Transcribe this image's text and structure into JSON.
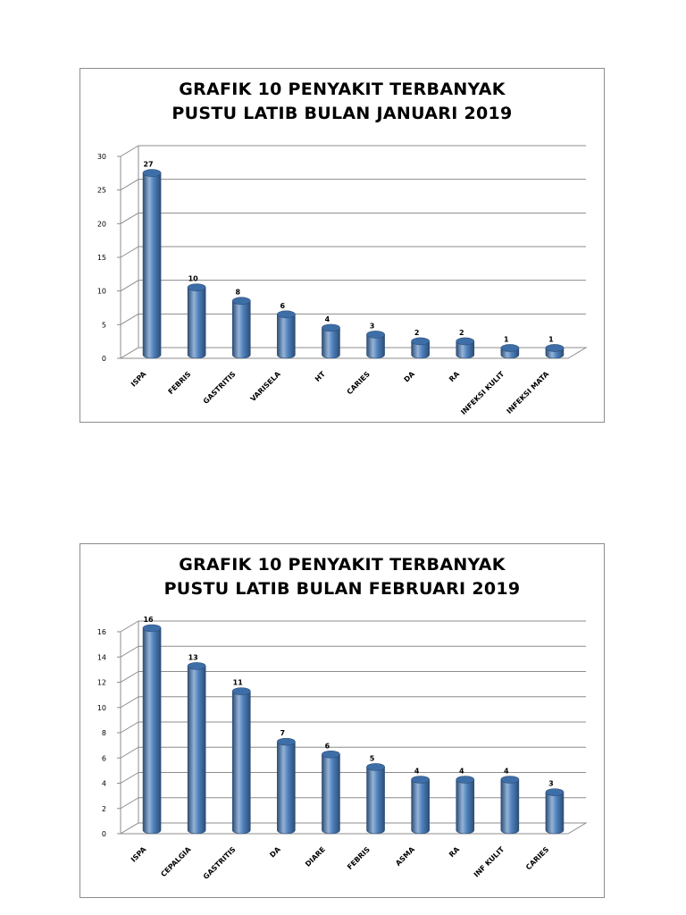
{
  "chart_data": [
    {
      "type": "bar",
      "title": [
        "GRAFIK 10 PENYAKIT TERBANYAK",
        "PUSTU LATIB BULAN JANUARI 2019"
      ],
      "categories": [
        "ISPA",
        "FEBRIS",
        "GASTRITIS",
        "VARISELA",
        "HT",
        "CARIES",
        "DA",
        "RA",
        "INFEKSI KULIT",
        "INFEKSI MATA"
      ],
      "values": [
        27,
        10,
        8,
        6,
        4,
        3,
        2,
        2,
        1,
        1
      ],
      "ylim": [
        0,
        30
      ],
      "yticks": [
        0,
        5,
        10,
        15,
        20,
        25,
        30
      ],
      "grid": true,
      "legend": "none",
      "colors": {
        "bar": "#4f81bd",
        "bar_light": "#95b3d7",
        "bar_dark": "#2c4d75"
      }
    },
    {
      "type": "bar",
      "title": [
        "GRAFIK 10 PENYAKIT TERBANYAK",
        "PUSTU LATIB BULAN FEBRUARI 2019"
      ],
      "categories": [
        "ISPA",
        "CEPALGIA",
        "GASTRITIS",
        "DA",
        "DIARE",
        "FEBRIS",
        "ASMA",
        "RA",
        "INF KULIT",
        "CARIES"
      ],
      "values": [
        16,
        13,
        11,
        7,
        6,
        5,
        4,
        4,
        4,
        3
      ],
      "ylim": [
        0,
        16
      ],
      "yticks": [
        0,
        2,
        4,
        6,
        8,
        10,
        12,
        14,
        16
      ],
      "grid": true,
      "legend": "none",
      "colors": {
        "bar": "#4f81bd",
        "bar_light": "#95b3d7",
        "bar_dark": "#2c4d75"
      }
    }
  ]
}
